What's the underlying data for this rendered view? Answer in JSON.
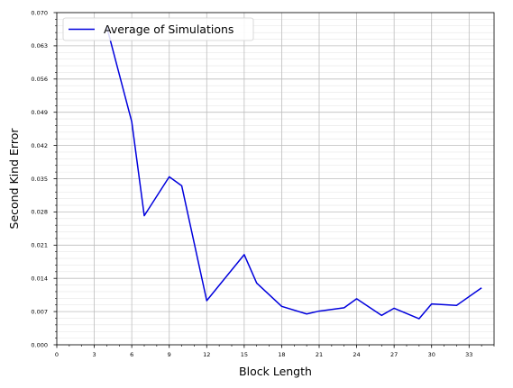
{
  "chart_data": {
    "type": "line",
    "title": "",
    "xlabel": "Block Length",
    "ylabel": "Second Kind Error",
    "xlim": [
      0,
      35
    ],
    "ylim": [
      0,
      0.07
    ],
    "x_ticks": [
      "0",
      "3",
      "6",
      "9",
      "12",
      "15",
      "18",
      "21",
      "24",
      "27",
      "30",
      "33"
    ],
    "y_ticks": [
      "0.000",
      "0.007",
      "0.014",
      "0.021",
      "0.028",
      "0.035",
      "0.042",
      "0.049",
      "0.056",
      "0.063",
      "0.070"
    ],
    "grid": true,
    "legend": "top-left",
    "series": [
      {
        "name": "Average of Simulations",
        "color": "#0000dd",
        "x": [
          4,
          6,
          7,
          9,
          10,
          12,
          15,
          16,
          18,
          20,
          21,
          23,
          24,
          26,
          27,
          29,
          30,
          32,
          34
        ],
        "y": [
          0.067,
          0.047,
          0.0272,
          0.0354,
          0.0335,
          0.0093,
          0.019,
          0.013,
          0.0081,
          0.0065,
          0.0071,
          0.0078,
          0.0097,
          0.0062,
          0.0077,
          0.0055,
          0.0086,
          0.0083,
          0.012
        ]
      }
    ]
  }
}
